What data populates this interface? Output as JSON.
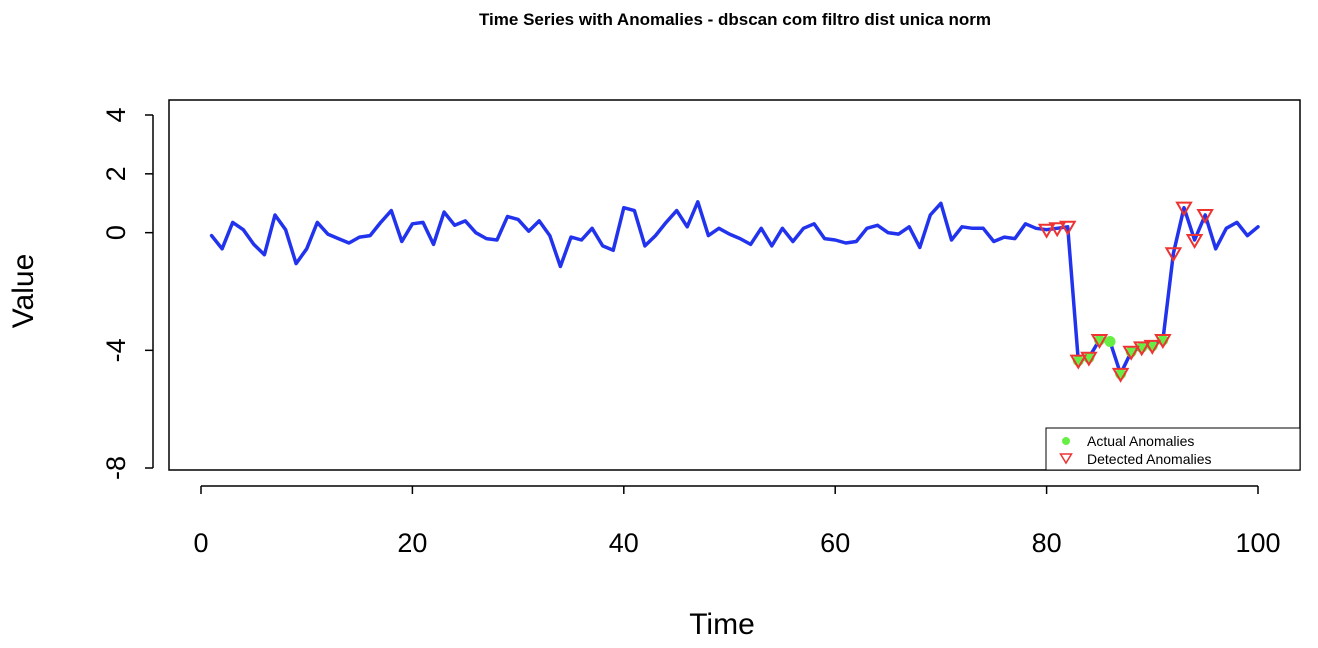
{
  "chart_data": {
    "type": "line",
    "title": "Time Series with Anomalies - dbscan com filtro dist unica norm",
    "xlabel": "Time",
    "ylabel": "Value",
    "xlim": [
      0,
      100
    ],
    "ylim": [
      -8,
      4
    ],
    "x_ticks": [
      0,
      20,
      40,
      60,
      80,
      100
    ],
    "y_ticks": [
      -8,
      -4,
      0,
      2,
      4
    ],
    "colors": {
      "line": "#2233ee",
      "actual": "#66ee44",
      "detected": "#ee3333"
    },
    "series": [
      {
        "x": [
          1,
          2,
          3,
          4,
          5,
          6,
          7,
          8,
          9,
          10,
          11,
          12,
          13,
          14,
          15,
          16,
          17,
          18,
          19,
          20,
          21,
          22,
          23,
          24,
          25,
          26,
          27,
          28,
          29,
          30,
          31,
          32,
          33,
          34,
          35,
          36,
          37,
          38,
          39,
          40,
          41,
          42,
          43,
          44,
          45,
          46,
          47,
          48,
          49,
          50,
          51,
          52,
          53,
          54,
          55,
          56,
          57,
          58,
          59,
          60,
          61,
          62,
          63,
          64,
          65,
          66,
          67,
          68,
          69,
          70,
          71,
          72,
          73,
          74,
          75,
          76,
          77,
          78,
          79,
          80,
          81,
          82,
          83,
          84,
          85,
          86,
          87,
          88,
          89,
          90,
          91,
          92,
          93,
          94,
          95,
          96,
          97,
          98,
          99,
          100
        ],
        "y": [
          -0.1,
          -0.55,
          0.35,
          0.1,
          -0.4,
          -0.75,
          0.6,
          0.1,
          -1.05,
          -0.55,
          0.35,
          -0.05,
          -0.2,
          -0.35,
          -0.15,
          -0.1,
          0.35,
          0.75,
          -0.3,
          0.3,
          0.35,
          -0.4,
          0.7,
          0.25,
          0.4,
          0.0,
          -0.2,
          -0.25,
          0.55,
          0.45,
          0.05,
          0.4,
          -0.1,
          -1.15,
          -0.15,
          -0.25,
          0.15,
          -0.45,
          -0.6,
          0.85,
          0.75,
          -0.45,
          -0.1,
          0.35,
          0.75,
          0.2,
          1.05,
          -0.1,
          0.15,
          -0.05,
          -0.2,
          -0.4,
          0.15,
          -0.45,
          0.15,
          -0.3,
          0.15,
          0.3,
          -0.2,
          -0.25,
          -0.35,
          -0.3,
          0.15,
          0.25,
          0.0,
          -0.05,
          0.2,
          -0.5,
          0.6,
          1.0,
          -0.25,
          0.2,
          0.15,
          0.15,
          -0.3,
          -0.15,
          -0.2,
          0.3,
          0.15,
          0.1,
          0.15,
          0.2,
          -4.35,
          -4.25,
          -3.65,
          -3.7,
          -4.8,
          -4.05,
          -3.9,
          -3.85,
          -3.65,
          -0.7,
          0.85,
          -0.25,
          0.6,
          -0.55,
          0.15,
          0.35,
          -0.1,
          0.2
        ]
      }
    ],
    "actual_anomalies": {
      "x": [
        83,
        84,
        85,
        86,
        87,
        88,
        89,
        90,
        91
      ],
      "y": [
        -4.35,
        -4.25,
        -3.65,
        -3.7,
        -4.8,
        -4.05,
        -3.9,
        -3.85,
        -3.65
      ]
    },
    "detected_anomalies": {
      "x": [
        80,
        81,
        82,
        83,
        84,
        85,
        87,
        88,
        89,
        90,
        91,
        92,
        93,
        94,
        95
      ],
      "y": [
        0.1,
        0.15,
        0.2,
        -4.35,
        -4.25,
        -3.65,
        -4.8,
        -4.05,
        -3.9,
        -3.85,
        -3.65,
        -0.7,
        0.85,
        -0.25,
        0.6
      ]
    },
    "legend": {
      "position": "bottom-right",
      "entries": [
        "Actual Anomalies",
        "Detected Anomalies"
      ]
    }
  }
}
